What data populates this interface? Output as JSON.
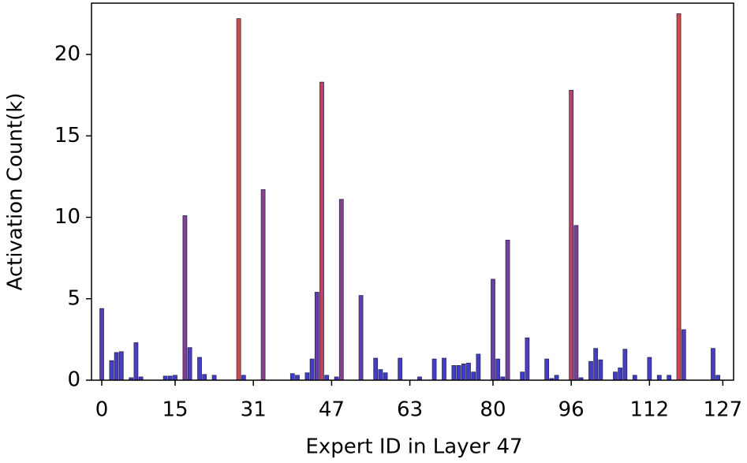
{
  "chart_data": {
    "type": "bar",
    "xlabel": "Expert ID in Layer 47",
    "ylabel": "Activation Count(k)",
    "x": [
      0,
      1,
      2,
      3,
      4,
      5,
      6,
      7,
      8,
      9,
      10,
      11,
      12,
      13,
      14,
      15,
      16,
      17,
      18,
      19,
      20,
      21,
      22,
      23,
      24,
      25,
      26,
      27,
      28,
      29,
      30,
      31,
      32,
      33,
      34,
      35,
      36,
      37,
      38,
      39,
      40,
      41,
      42,
      43,
      44,
      45,
      46,
      47,
      48,
      49,
      50,
      51,
      52,
      53,
      54,
      55,
      56,
      57,
      58,
      59,
      60,
      61,
      62,
      63,
      64,
      65,
      66,
      67,
      68,
      69,
      70,
      71,
      72,
      73,
      74,
      75,
      76,
      77,
      78,
      79,
      80,
      81,
      82,
      83,
      84,
      85,
      86,
      87,
      88,
      89,
      90,
      91,
      92,
      93,
      94,
      95,
      96,
      97,
      98,
      99,
      100,
      101,
      102,
      103,
      104,
      105,
      106,
      107,
      108,
      109,
      110,
      111,
      112,
      113,
      114,
      115,
      116,
      117,
      118,
      119,
      120,
      121,
      122,
      123,
      124,
      125,
      126,
      127
    ],
    "values": [
      4.4,
      0,
      1.2,
      1.7,
      1.75,
      0,
      0.15,
      2.3,
      0.2,
      0,
      0,
      0,
      0,
      0.25,
      0.25,
      0.3,
      0,
      10.1,
      2.0,
      0,
      1.4,
      0.35,
      0,
      0.3,
      0,
      0,
      0,
      0,
      22.2,
      0.3,
      0,
      0,
      0,
      11.7,
      0,
      0,
      0,
      0,
      0,
      0.4,
      0.3,
      0,
      0.45,
      1.3,
      5.4,
      18.3,
      0.3,
      0,
      0.2,
      11.1,
      0,
      0,
      0,
      5.2,
      0,
      0,
      1.35,
      0.65,
      0.45,
      0,
      0,
      1.35,
      0,
      0,
      0,
      0.2,
      0,
      0,
      1.3,
      0,
      1.35,
      0,
      0.9,
      0.9,
      1.0,
      1.05,
      0.5,
      1.6,
      0,
      0,
      6.2,
      1.3,
      0.2,
      8.6,
      0,
      0,
      0.5,
      2.6,
      0,
      0,
      0,
      1.3,
      0.1,
      0.3,
      0,
      0,
      17.8,
      9.5,
      0.15,
      0,
      1.15,
      1.95,
      1.25,
      0,
      0,
      0.5,
      0.75,
      1.9,
      0,
      0.3,
      0,
      0,
      1.4,
      0,
      0.3,
      0,
      0.3,
      0,
      22.5,
      3.1,
      0,
      0,
      0,
      0,
      0,
      1.95,
      0.3,
      0
    ],
    "color_range": [
      "#3c3ccf",
      "#d94646"
    ],
    "edgecolor": "#2a2a55",
    "xlim": [
      -2.1,
      129.2
    ],
    "ylim": [
      0,
      23.15
    ],
    "xticks": [
      0,
      15,
      31,
      47,
      63,
      80,
      96,
      112,
      127
    ],
    "yticks": [
      0,
      5,
      10,
      15,
      20
    ],
    "grid": false
  }
}
